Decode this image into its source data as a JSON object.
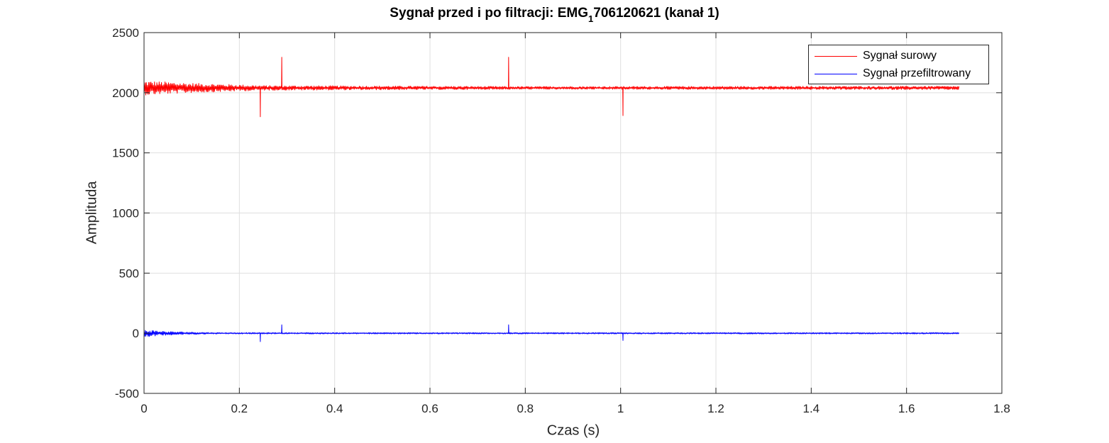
{
  "chart_data": {
    "type": "line",
    "title_main": "Sygnał przed i po filtracji: EMG",
    "title_subscript": "1",
    "title_rest": "706120621 (kanał 1)",
    "xlabel": "Czas (s)",
    "ylabel": "Amplituda",
    "xlim": [
      0,
      1.8
    ],
    "ylim": [
      -500,
      2500
    ],
    "xticks": [
      0,
      0.2,
      0.4,
      0.6,
      0.8,
      1,
      1.2,
      1.4,
      1.6,
      1.8
    ],
    "xtick_labels": [
      "0",
      "0.2",
      "0.4",
      "0.6",
      "0.8",
      "1",
      "1.2",
      "1.4",
      "1.6",
      "1.8"
    ],
    "yticks": [
      -500,
      0,
      500,
      1000,
      1500,
      2000,
      2500
    ],
    "ytick_labels": [
      "-500",
      "0",
      "500",
      "1000",
      "1500",
      "2000",
      "2500"
    ],
    "grid": true,
    "legend_position": "top-right",
    "series": [
      {
        "name": "Sygnał surowy",
        "color": "#ff0000",
        "x_range": [
          0,
          1.71
        ],
        "baseline": 2040,
        "oscillation": [
          [
            0,
            60
          ],
          [
            0.1,
            40
          ],
          [
            0.25,
            20
          ],
          [
            0.8,
            12
          ],
          [
            1.71,
            15
          ]
        ],
        "spikes": [
          [
            0.244,
            1800
          ],
          [
            0.289,
            2295
          ],
          [
            0.765,
            2295
          ],
          [
            1.005,
            1810
          ]
        ]
      },
      {
        "name": "Sygnał przefiltrowany",
        "color": "#0000ff",
        "x_range": [
          0,
          1.71
        ],
        "baseline": 0,
        "oscillation": [
          [
            0,
            30
          ],
          [
            0.05,
            15
          ],
          [
            0.15,
            6
          ],
          [
            1.71,
            6
          ]
        ],
        "spikes": [
          [
            0.244,
            -70
          ],
          [
            0.289,
            70
          ],
          [
            0.765,
            70
          ],
          [
            1.005,
            -60
          ]
        ]
      }
    ]
  }
}
